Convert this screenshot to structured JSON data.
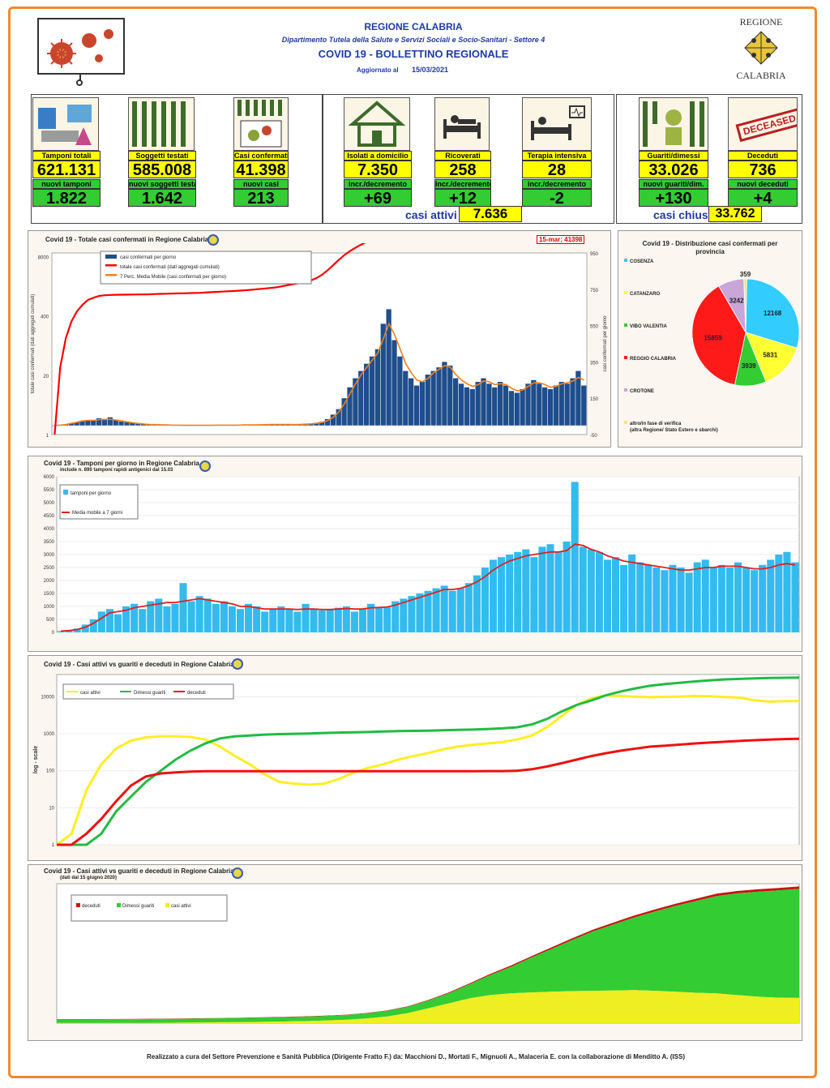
{
  "header": {
    "region": "REGIONE CALABRIA",
    "department": "Dipartimento Tutela della Salute e Servizi Sociali e Socio-Sanitari - Settore 4",
    "title": "COVID 19 - BOLLETTINO REGIONALE",
    "updated_label": "Aggiornato al",
    "updated_date": "15/03/2021",
    "logo_top": "REGIONE",
    "logo_bottom": "CALABRIA"
  },
  "stats": {
    "tamponi": {
      "label": "Tamponi totali",
      "value": "621.131",
      "sub_label": "nuovi tamponi",
      "sub_value": "1.822"
    },
    "soggetti": {
      "label": "Soggetti testati",
      "value": "585.008",
      "sub_label": "nuovi soggetti testati",
      "sub_value": "1.642"
    },
    "casi": {
      "label": "Casi confermati",
      "value": "41.398",
      "sub_label": "nuovi casi",
      "sub_value": "213"
    },
    "isolati": {
      "label": "Isolati a domicilio",
      "value": "7.350",
      "sub_label": "incr./decremento",
      "sub_value": "+69"
    },
    "ricoverati": {
      "label": "Ricoverati",
      "value": "258",
      "sub_label": "incr./decremento",
      "sub_value": "+12"
    },
    "terapia": {
      "label": "Terapia intensiva",
      "value": "28",
      "sub_label": "incr./decremento",
      "sub_value": "-2"
    },
    "guariti": {
      "label": "Guariti/dimessi",
      "value": "33.026",
      "sub_label": "nuovi guariti/dim.",
      "sub_value": "+130"
    },
    "deceduti": {
      "label": "Deceduti",
      "value": "736",
      "sub_label": "nuovi deceduti",
      "sub_value": "+4"
    },
    "attivi_label": "casi attivi",
    "attivi_value": "7.636",
    "chiusi_label": "casi chiusi",
    "chiusi_value": "33.762",
    "deceased_stamp": "DECEASED"
  },
  "chart_data": [
    {
      "type": "bar",
      "title": "Covid 19 - Totale casi confermati in Regione Calabria",
      "callout": "15-mar; 41398",
      "ylabel": "totale casi confermati (dati aggregati cumulati)",
      "ylabel_right": "casi confermati per giorno",
      "yticks_left": [
        "1",
        "20",
        "400",
        "8000"
      ],
      "yticks_right": [
        "-50",
        "150",
        "350",
        "550",
        "750",
        "950"
      ],
      "legend": [
        "casi confermati per giorno",
        "totale casi confermati (dati aggregati cumulati)",
        "7 Perc. Media Mobile (casi confermati per giorno)"
      ],
      "colors": {
        "bars": "#1f4e8c",
        "total": "#ff0000",
        "moving_avg": "#f08020"
      },
      "series": [
        {
          "name": "casi confermati per giorno",
          "values": [
            0,
            2,
            5,
            12,
            18,
            25,
            30,
            28,
            40,
            35,
            45,
            30,
            22,
            18,
            15,
            10,
            8,
            6,
            5,
            4,
            3,
            2,
            2,
            1,
            1,
            1,
            2,
            1,
            1,
            2,
            3,
            2,
            1,
            2,
            3,
            4,
            3,
            5,
            6,
            8,
            6,
            5,
            7,
            4,
            6,
            9,
            10,
            15,
            20,
            35,
            60,
            90,
            150,
            210,
            260,
            300,
            340,
            380,
            420,
            560,
            640,
            470,
            380,
            300,
            260,
            220,
            240,
            280,
            300,
            320,
            350,
            330,
            260,
            230,
            210,
            200,
            240,
            260,
            230,
            210,
            240,
            220,
            190,
            180,
            200,
            230,
            250,
            230,
            210,
            200,
            220,
            240,
            230,
            260,
            300,
            220
          ]
        },
        {
          "name": "totale casi confermati (dati aggregati cumulati)",
          "values": [
            1,
            30,
            130,
            300,
            500,
            700,
            900,
            1000,
            1100,
            1130,
            1150,
            1160,
            1165,
            1170,
            1175,
            1180,
            1185,
            1190,
            1200,
            1210,
            1220,
            1230,
            1240,
            1250,
            1260,
            1270,
            1280,
            1300,
            1320,
            1340,
            1360,
            1380,
            1400,
            1420,
            1450,
            1480,
            1520,
            1560,
            1600,
            1650,
            1700,
            1800,
            1900,
            2000,
            2100,
            2200,
            2400,
            2700,
            3200,
            4000,
            5200,
            6800,
            8600,
            10500,
            12500,
            14600,
            16700,
            18800,
            21000,
            23500,
            25800,
            27400,
            28600,
            29500,
            30300,
            31000,
            31700,
            32400,
            33000,
            33700,
            34400,
            35000,
            35500,
            35900,
            36300,
            36700,
            37100,
            37500,
            37800,
            38100,
            38400,
            38700,
            39000,
            39300,
            39600,
            39900,
            40200,
            40400,
            40600,
            40800,
            40950,
            41050,
            41150,
            41250,
            41330,
            41398
          ]
        },
        {
          "name": "7 Perc. Media Mobile (casi confermati per giorno)",
          "values": [
            0,
            2,
            5,
            12,
            18,
            25,
            28,
            28,
            32,
            33,
            34,
            30,
            25,
            20,
            15,
            11,
            8,
            6,
            5,
            4,
            3,
            2,
            2,
            1,
            1,
            1,
            1,
            1,
            1,
            2,
            2,
            2,
            2,
            2,
            3,
            3,
            3,
            4,
            5,
            6,
            6,
            6,
            6,
            5,
            6,
            7,
            9,
            12,
            17,
            27,
            45,
            75,
            120,
            175,
            230,
            280,
            320,
            360,
            400,
            480,
            560,
            500,
            420,
            340,
            290,
            250,
            240,
            260,
            290,
            310,
            330,
            320,
            280,
            250,
            230,
            215,
            225,
            245,
            240,
            225,
            230,
            225,
            205,
            190,
            195,
            215,
            235,
            235,
            225,
            210,
            215,
            230,
            235,
            245,
            265,
            250
          ]
        }
      ]
    },
    {
      "type": "pie",
      "title": "Covid 19 - Distribuzione casi confermati per provincia",
      "categories": [
        "COSENZA",
        "CATANZARO",
        "VIBO VALENTIA",
        "REGGIO CALABRIA",
        "CROTONE",
        "altro/in fase di verifica (altra Regione/ Stato Estero e sbarchi)"
      ],
      "values": [
        12168,
        5831,
        3939,
        15859,
        3242,
        359
      ],
      "colors": [
        "#33ccff",
        "#ffff33",
        "#33cc33",
        "#ff1a1a",
        "#c8a6d8",
        "#ffe680"
      ]
    },
    {
      "type": "bar",
      "title": "Covid 19 - Tamponi per giorno in Regione Calabria",
      "subtitle": "include n. 890 tamponi rapidi antigenici dal 15.03",
      "ylim": [
        0,
        6000
      ],
      "yticks": [
        "0",
        "500",
        "1000",
        "1500",
        "2000",
        "2500",
        "3000",
        "3500",
        "4000",
        "4500",
        "5000",
        "5500",
        "6000"
      ],
      "legend": [
        "tamponi per giorno",
        "Media mobile a 7 giorni"
      ],
      "colors": {
        "bars": "#33bbee",
        "line": "#dd2222"
      },
      "series": [
        {
          "name": "tamponi per giorno",
          "values": [
            50,
            80,
            150,
            300,
            500,
            800,
            900,
            700,
            1000,
            1100,
            900,
            1200,
            1300,
            1000,
            1100,
            1900,
            1200,
            1400,
            1300,
            1100,
            1200,
            1000,
            900,
            1100,
            1000,
            800,
            900,
            1000,
            900,
            800,
            1100,
            900,
            850,
            900,
            950,
            1000,
            800,
            900,
            1100,
            950,
            1000,
            1200,
            1300,
            1400,
            1500,
            1600,
            1700,
            1800,
            1600,
            1700,
            1900,
            2200,
            2500,
            2800,
            2900,
            3000,
            3100,
            3200,
            2900,
            3300,
            3400,
            3100,
            3500,
            5800,
            3300,
            3200,
            3100,
            2800,
            2900,
            2600,
            3000,
            2700,
            2600,
            2500,
            2400,
            2600,
            2500,
            2300,
            2700,
            2800,
            2500,
            2600,
            2500,
            2700,
            2500,
            2400,
            2600,
            2800,
            3000,
            3100,
            2700
          ]
        },
        {
          "name": "Media mobile a 7 giorni",
          "values": [
            50,
            70,
            110,
            200,
            350,
            550,
            750,
            800,
            850,
            950,
            1000,
            1050,
            1100,
            1150,
            1150,
            1200,
            1250,
            1300,
            1250,
            1200,
            1150,
            1100,
            1000,
            1000,
            950,
            900,
            900,
            900,
            900,
            880,
            900,
            900,
            880,
            880,
            900,
            920,
            900,
            900,
            950,
            960,
            980,
            1050,
            1150,
            1250,
            1350,
            1450,
            1550,
            1650,
            1650,
            1700,
            1800,
            1950,
            2150,
            2400,
            2600,
            2750,
            2850,
            2950,
            3000,
            3050,
            3100,
            3100,
            3150,
            3400,
            3350,
            3200,
            3100,
            2950,
            2850,
            2750,
            2700,
            2650,
            2600,
            2550,
            2500,
            2450,
            2400,
            2400,
            2450,
            2500,
            2500,
            2550,
            2550,
            2550,
            2500,
            2450,
            2450,
            2500,
            2600,
            2650,
            2600
          ]
        }
      ]
    },
    {
      "type": "line",
      "title": "Covid 19 - Casi attivi vs guariti e deceduti in Regione Calabria",
      "ylabel": "log - scale",
      "yticks": [
        "1",
        "10",
        "100",
        "1000",
        "10000"
      ],
      "log_scale": true,
      "legend": [
        "casi attivi",
        "Dimessi guariti",
        "deceduti"
      ],
      "colors": {
        "attivi": "#ffee22",
        "guariti": "#22bb44",
        "deceduti": "#ee1111"
      },
      "series": [
        {
          "name": "casi attivi",
          "values": [
            1,
            2,
            30,
            150,
            400,
            650,
            800,
            850,
            860,
            820,
            700,
            450,
            250,
            150,
            80,
            50,
            45,
            42,
            45,
            60,
            90,
            120,
            150,
            200,
            250,
            300,
            380,
            450,
            500,
            550,
            600,
            700,
            900,
            1500,
            3000,
            6000,
            9000,
            11000,
            10500,
            10000,
            9800,
            10000,
            10200,
            10500,
            10300,
            9900,
            9500,
            8000,
            7400,
            7600,
            7636
          ]
        },
        {
          "name": "Dimessi guariti",
          "values": [
            1,
            1,
            1,
            2,
            8,
            20,
            50,
            100,
            200,
            350,
            550,
            750,
            850,
            900,
            950,
            980,
            1000,
            1020,
            1050,
            1080,
            1100,
            1120,
            1150,
            1180,
            1200,
            1220,
            1250,
            1280,
            1300,
            1350,
            1400,
            1500,
            1800,
            2500,
            4000,
            6000,
            8000,
            11000,
            14000,
            17000,
            20000,
            22000,
            24000,
            26000,
            28000,
            29500,
            30500,
            31500,
            32200,
            32700,
            33026
          ]
        },
        {
          "name": "deceduti",
          "values": [
            1,
            1,
            2,
            5,
            15,
            40,
            70,
            85,
            90,
            95,
            97,
            97,
            97,
            97,
            97,
            97,
            97,
            97,
            97,
            97,
            97,
            97,
            97,
            97,
            97,
            97,
            97,
            97,
            97,
            98,
            98,
            100,
            110,
            130,
            160,
            200,
            250,
            300,
            350,
            400,
            450,
            480,
            510,
            550,
            580,
            610,
            640,
            670,
            700,
            720,
            736
          ]
        }
      ]
    },
    {
      "type": "area",
      "title": "Covid 19 - Casi attivi vs guariti e deceduti in Regione Calabria",
      "subtitle": "(dati dal 15 giugno 2020)",
      "legend": [
        "deceduti",
        "Dimessi guariti",
        "casi attivi"
      ],
      "colors": {
        "deceduti": "#cc1111",
        "guariti": "#33cc33",
        "attivi": "#eeee22"
      },
      "series": [
        {
          "name": "casi attivi",
          "values": [
            45,
            45,
            50,
            60,
            80,
            110,
            150,
            200,
            260,
            330,
            400,
            500,
            620,
            780,
            1000,
            1400,
            2000,
            3000,
            4500,
            6000,
            7500,
            8500,
            9000,
            9300,
            9500,
            9700,
            9800,
            9900,
            10000,
            9800,
            9500,
            9200,
            9000,
            8500,
            8000,
            7700,
            7636
          ]
        },
        {
          "name": "Dimessi guariti",
          "values": [
            1050,
            1060,
            1080,
            1100,
            1120,
            1140,
            1160,
            1180,
            1200,
            1230,
            1260,
            1290,
            1330,
            1380,
            1450,
            1550,
            1700,
            1900,
            2300,
            3000,
            4200,
            6000,
            8000,
            10500,
            13000,
            15500,
            18000,
            20000,
            22000,
            24000,
            26000,
            27800,
            29500,
            30800,
            31800,
            32500,
            33026
          ]
        },
        {
          "name": "deceduti",
          "values": [
            97,
            97,
            97,
            97,
            97,
            97,
            97,
            97,
            97,
            97,
            98,
            98,
            100,
            105,
            110,
            120,
            135,
            160,
            200,
            250,
            300,
            350,
            400,
            440,
            480,
            510,
            540,
            570,
            600,
            630,
            660,
            680,
            700,
            715,
            725,
            732,
            736
          ]
        }
      ]
    }
  ],
  "footer": "Realizzato a cura del Settore Prevenzione e Sanità Pubblica (Dirigente Fratto F.) da:  Macchioni D., Mortati F., Mignuoli A., Malaceria E. con la collaborazione di Menditto A. (ISS)"
}
